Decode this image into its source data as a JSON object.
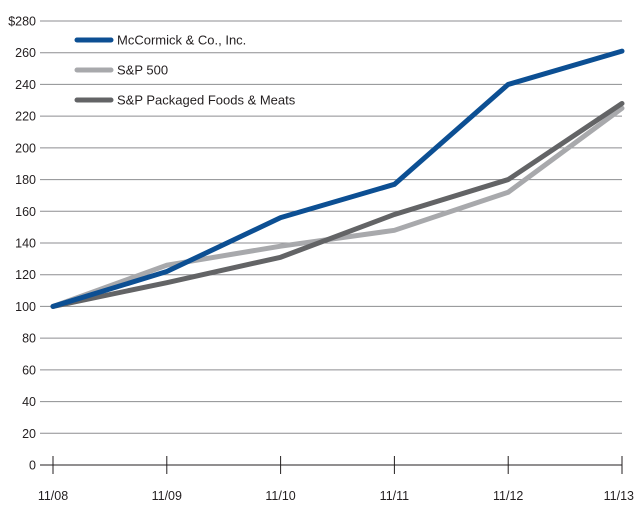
{
  "chart_data": {
    "type": "line",
    "y_currency_prefix": "$",
    "categories": [
      "11/08",
      "11/09",
      "11/10",
      "11/11",
      "11/12",
      "11/13"
    ],
    "y_ticks": [
      0,
      20,
      40,
      60,
      80,
      100,
      120,
      140,
      160,
      180,
      200,
      220,
      240,
      260,
      280
    ],
    "ylim": [
      0,
      280
    ],
    "grid": "horizontal",
    "legend_placement": "top-left",
    "series": [
      {
        "name": "McCormick & Co., Inc.",
        "color": "#0c4f93",
        "values": [
          100,
          122,
          156,
          177,
          240,
          261
        ]
      },
      {
        "name": "S&P 500",
        "color": "#a8a9ac",
        "values": [
          100,
          126,
          138,
          148,
          172,
          225
        ]
      },
      {
        "name": "S&P Packaged Foods & Meats",
        "color": "#636466",
        "values": [
          100,
          115,
          131,
          158,
          180,
          228
        ]
      }
    ]
  }
}
